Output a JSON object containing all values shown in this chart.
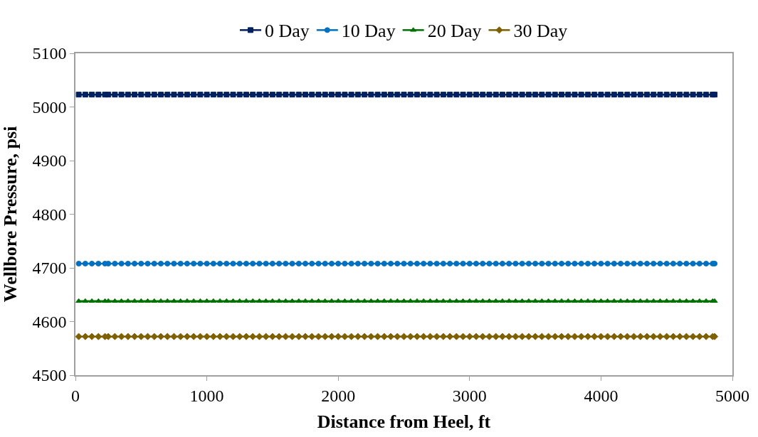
{
  "chart_data": {
    "type": "line",
    "xlabel": "Distance from Heel, ft",
    "ylabel": "Wellbore Pressure, psi",
    "x": [
      25,
      75,
      125,
      175,
      225,
      250,
      300,
      350,
      400,
      450,
      500,
      550,
      600,
      650,
      700,
      750,
      800,
      850,
      900,
      950,
      1000,
      1050,
      1100,
      1150,
      1200,
      1250,
      1300,
      1350,
      1400,
      1450,
      1500,
      1550,
      1600,
      1650,
      1700,
      1750,
      1800,
      1850,
      1900,
      1950,
      2000,
      2050,
      2100,
      2150,
      2200,
      2250,
      2300,
      2350,
      2400,
      2450,
      2500,
      2550,
      2600,
      2650,
      2700,
      2750,
      2800,
      2850,
      2900,
      2950,
      3000,
      3050,
      3100,
      3150,
      3200,
      3250,
      3300,
      3350,
      3400,
      3450,
      3500,
      3550,
      3600,
      3650,
      3700,
      3750,
      3800,
      3850,
      3900,
      3950,
      4000,
      4050,
      4100,
      4150,
      4200,
      4250,
      4300,
      4350,
      4400,
      4450,
      4500,
      4550,
      4600,
      4650,
      4700,
      4750,
      4800,
      4850,
      4865
    ],
    "series": [
      {
        "name": "0 Day",
        "color": "#002060",
        "marker": "square",
        "values": [
          5023,
          5023,
          5023,
          5023,
          5023,
          5023,
          5023,
          5023,
          5023,
          5023,
          5023,
          5023,
          5023,
          5023,
          5023,
          5023,
          5023,
          5023,
          5023,
          5023,
          5023,
          5023,
          5023,
          5023,
          5023,
          5023,
          5023,
          5023,
          5023,
          5023,
          5023,
          5023,
          5023,
          5023,
          5023,
          5023,
          5023,
          5023,
          5023,
          5023,
          5023,
          5023,
          5023,
          5023,
          5023,
          5023,
          5023,
          5023,
          5023,
          5023,
          5023,
          5023,
          5023,
          5023,
          5023,
          5023,
          5023,
          5023,
          5023,
          5023,
          5023,
          5023,
          5023,
          5023,
          5023,
          5023,
          5023,
          5023,
          5023,
          5023,
          5023,
          5023,
          5023,
          5023,
          5023,
          5023,
          5023,
          5023,
          5023,
          5023,
          5023,
          5023,
          5023,
          5023,
          5023,
          5023,
          5023,
          5023,
          5023,
          5023,
          5023,
          5023,
          5023,
          5023,
          5023,
          5023,
          5023,
          5023,
          5023
        ]
      },
      {
        "name": "10 Day",
        "color": "#0070c0",
        "marker": "circle",
        "values": [
          4708,
          4708,
          4708,
          4708,
          4708,
          4708,
          4708,
          4708,
          4708,
          4708,
          4708,
          4708,
          4708,
          4708,
          4708,
          4708,
          4708,
          4708,
          4708,
          4708,
          4708,
          4708,
          4708,
          4708,
          4708,
          4708,
          4708,
          4708,
          4708,
          4708,
          4708,
          4708,
          4708,
          4708,
          4708,
          4708,
          4708,
          4708,
          4708,
          4708,
          4708,
          4708,
          4708,
          4708,
          4708,
          4708,
          4708,
          4708,
          4708,
          4708,
          4708,
          4708,
          4708,
          4708,
          4708,
          4708,
          4708,
          4708,
          4708,
          4708,
          4708,
          4708,
          4708,
          4708,
          4708,
          4708,
          4708,
          4708,
          4708,
          4708,
          4708,
          4708,
          4708,
          4708,
          4708,
          4708,
          4708,
          4708,
          4708,
          4708,
          4708,
          4708,
          4708,
          4708,
          4708,
          4708,
          4708,
          4708,
          4708,
          4708,
          4708,
          4708,
          4708,
          4708,
          4708,
          4708,
          4708,
          4708,
          4708
        ]
      },
      {
        "name": "20 Day",
        "color": "#007000",
        "marker": "triangle",
        "values": [
          4638,
          4638,
          4638,
          4638,
          4638,
          4638,
          4638,
          4638,
          4638,
          4638,
          4638,
          4638,
          4638,
          4638,
          4638,
          4638,
          4638,
          4638,
          4638,
          4638,
          4638,
          4638,
          4638,
          4638,
          4638,
          4638,
          4638,
          4638,
          4638,
          4638,
          4638,
          4638,
          4638,
          4638,
          4638,
          4638,
          4638,
          4638,
          4638,
          4638,
          4638,
          4638,
          4638,
          4638,
          4638,
          4638,
          4638,
          4638,
          4638,
          4638,
          4638,
          4638,
          4638,
          4638,
          4638,
          4638,
          4638,
          4638,
          4638,
          4638,
          4638,
          4638,
          4638,
          4638,
          4638,
          4638,
          4638,
          4638,
          4638,
          4638,
          4638,
          4638,
          4638,
          4638,
          4638,
          4638,
          4638,
          4638,
          4638,
          4638,
          4638,
          4638,
          4638,
          4638,
          4638,
          4638,
          4638,
          4638,
          4638,
          4638,
          4638,
          4638,
          4638,
          4638,
          4638,
          4638,
          4638,
          4638,
          4638
        ]
      },
      {
        "name": "30 Day",
        "color": "#7f6000",
        "marker": "diamond",
        "values": [
          4572,
          4572,
          4572,
          4572,
          4572,
          4572,
          4572,
          4572,
          4572,
          4572,
          4572,
          4572,
          4572,
          4572,
          4572,
          4572,
          4572,
          4572,
          4572,
          4572,
          4572,
          4572,
          4572,
          4572,
          4572,
          4572,
          4572,
          4572,
          4572,
          4572,
          4572,
          4572,
          4572,
          4572,
          4572,
          4572,
          4572,
          4572,
          4572,
          4572,
          4572,
          4572,
          4572,
          4572,
          4572,
          4572,
          4572,
          4572,
          4572,
          4572,
          4572,
          4572,
          4572,
          4572,
          4572,
          4572,
          4572,
          4572,
          4572,
          4572,
          4572,
          4572,
          4572,
          4572,
          4572,
          4572,
          4572,
          4572,
          4572,
          4572,
          4572,
          4572,
          4572,
          4572,
          4572,
          4572,
          4572,
          4572,
          4572,
          4572,
          4572,
          4572,
          4572,
          4572,
          4572,
          4572,
          4572,
          4572,
          4572,
          4572,
          4572,
          4572,
          4572,
          4572,
          4572,
          4572,
          4572,
          4572,
          4572
        ]
      }
    ],
    "xlim": [
      0,
      5000
    ],
    "xticks": [
      0,
      1000,
      2000,
      3000,
      4000,
      5000
    ],
    "ylim": [
      4500,
      5100
    ],
    "yticks": [
      4500,
      4600,
      4700,
      4800,
      4900,
      5000,
      5100
    ],
    "legend": "top"
  }
}
